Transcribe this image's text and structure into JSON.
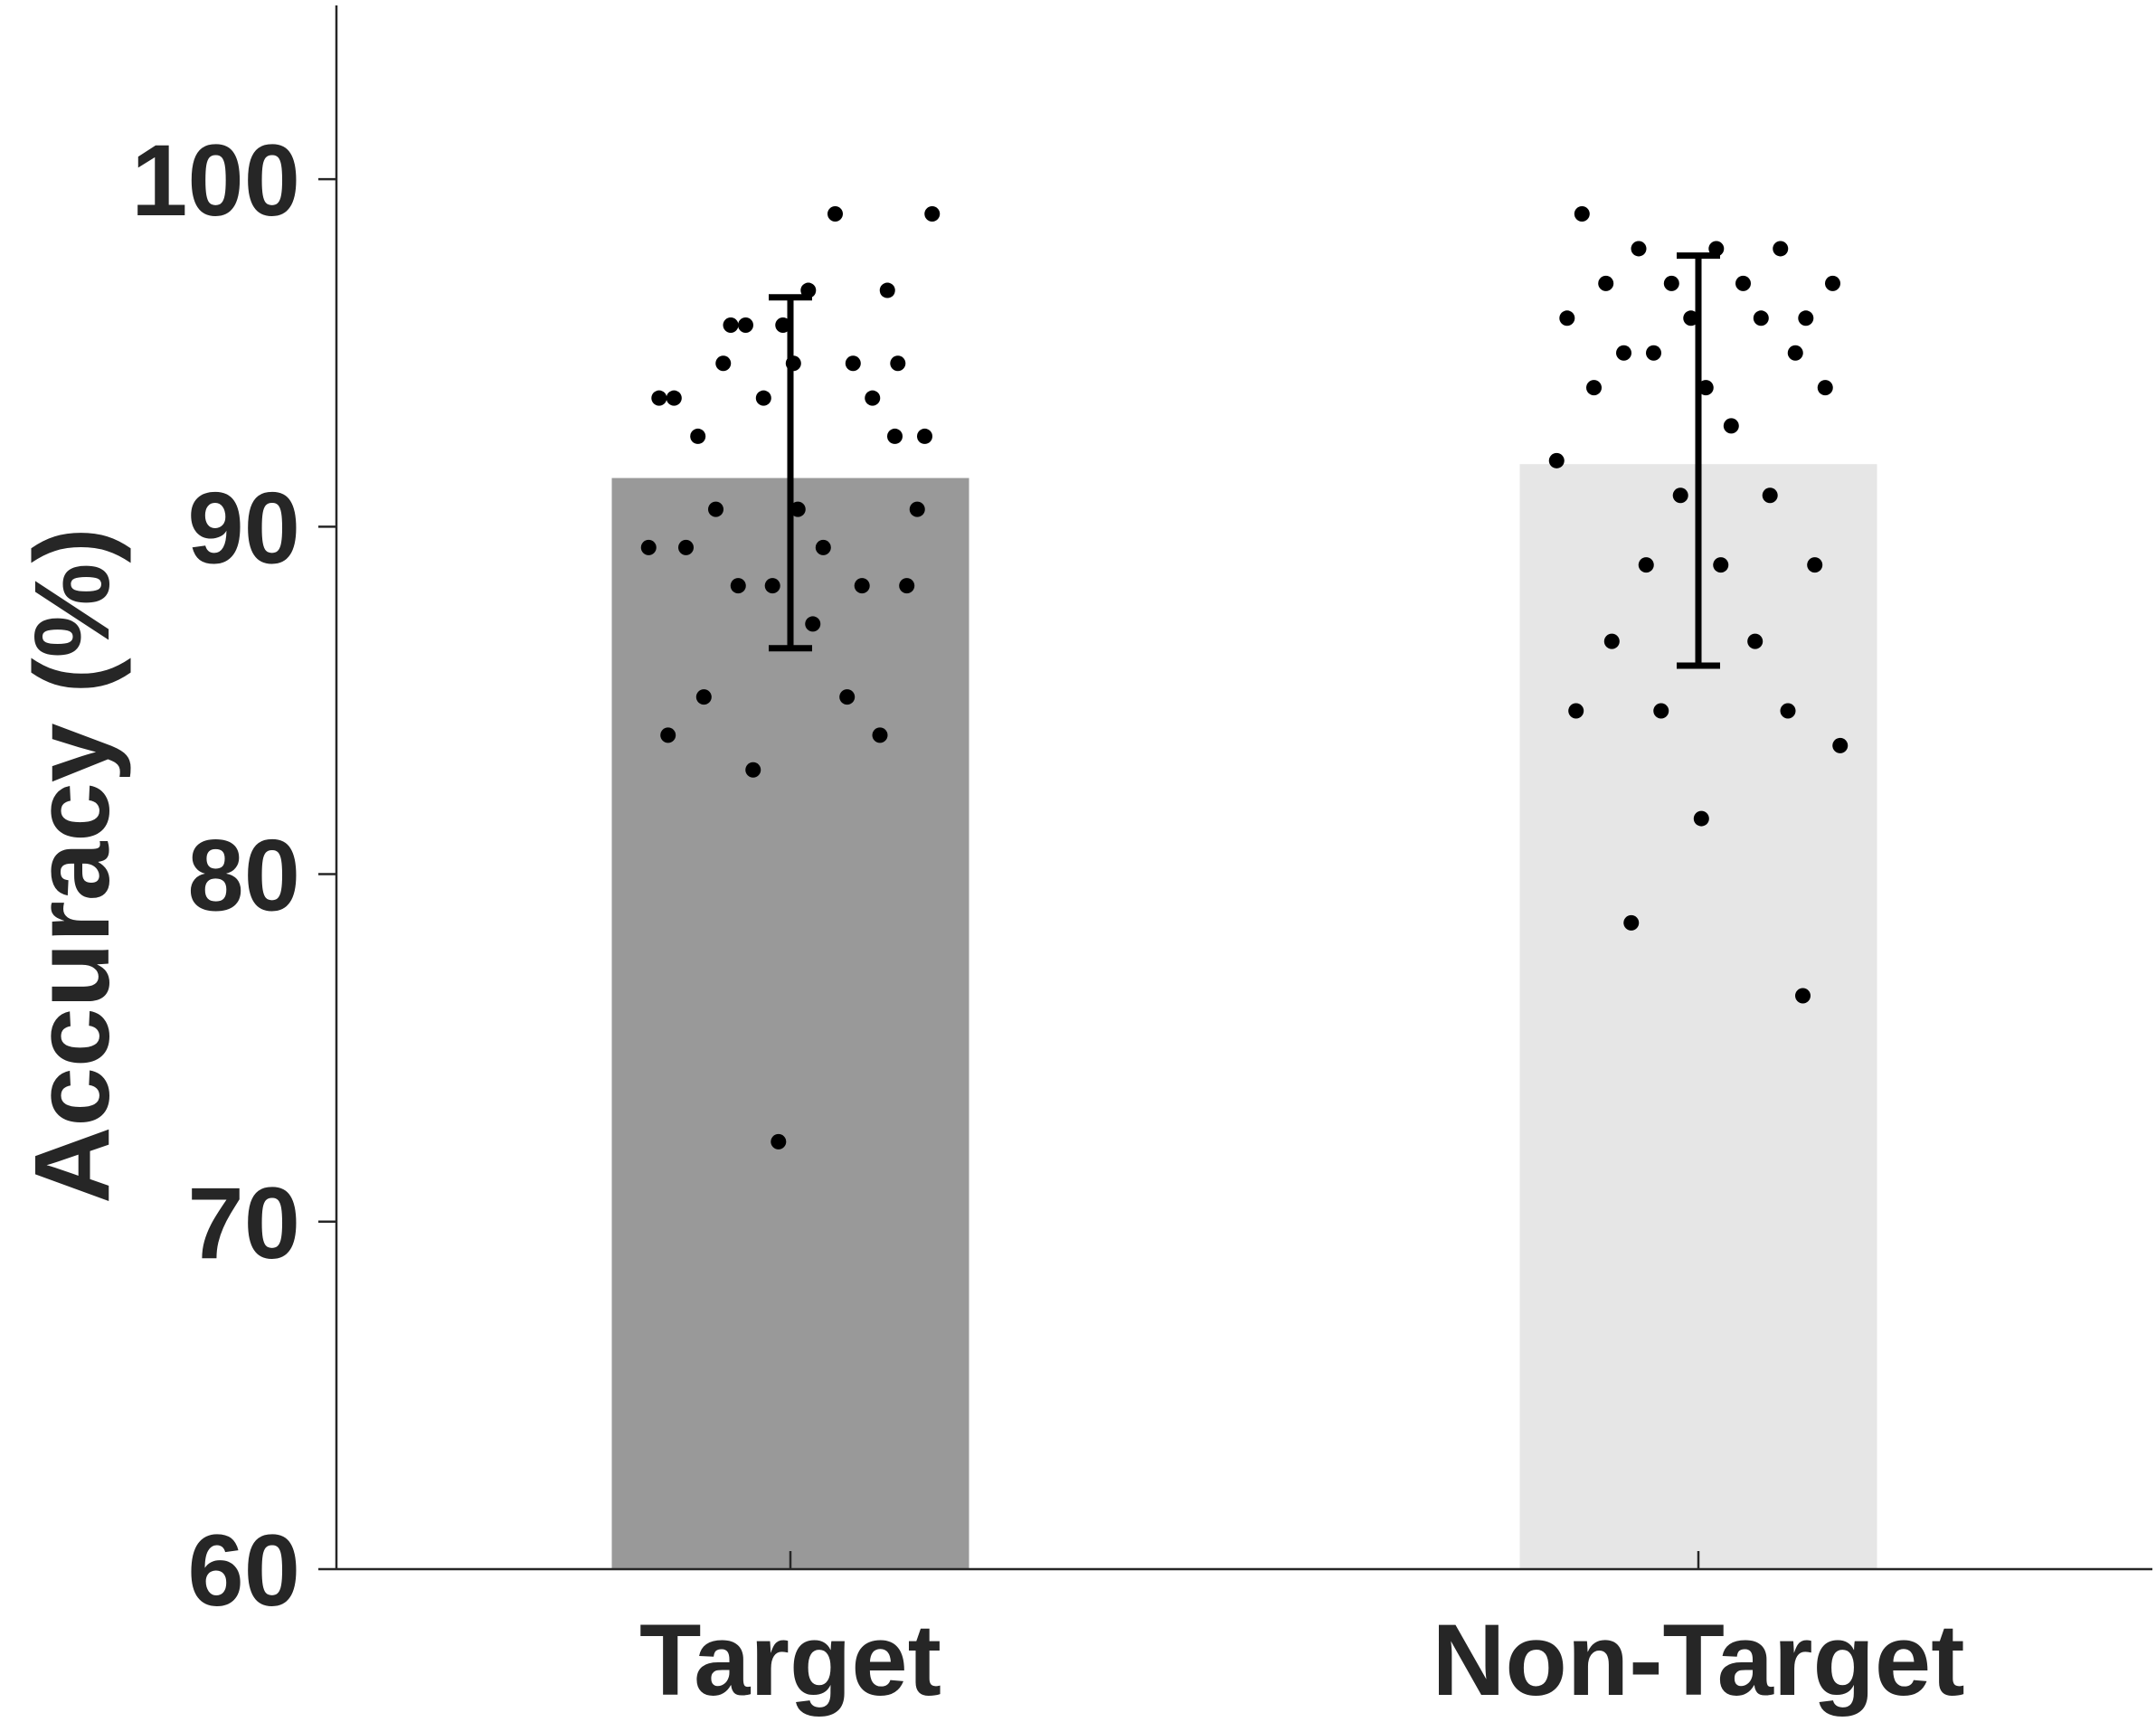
{
  "chart_data": {
    "type": "bar",
    "ylabel": "Accuracy (%)",
    "ylim": [
      60,
      105
    ],
    "yticks": [
      60,
      70,
      80,
      90,
      100
    ],
    "grid": false,
    "categories": [
      "Target",
      "Non-Target"
    ],
    "values": [
      91.4,
      91.8
    ],
    "bar_colors": [
      "#999999",
      "#e6e6e6"
    ],
    "error_bars": [
      {
        "mean": 91.4,
        "lower": 86.5,
        "upper": 96.6
      },
      {
        "mean": 91.8,
        "lower": 86.0,
        "upper": 97.8
      }
    ],
    "points": [
      [
        93.7,
        96.8,
        95.8,
        93.7,
        93.7,
        92.6,
        92.6,
        99.0,
        95.8,
        94.7,
        93.7,
        94.7,
        95.8,
        96.8,
        90.5,
        90.5,
        90.5,
        89.4,
        89.4,
        89.4,
        88.3,
        88.3,
        88.3,
        88.3,
        87.2,
        85.1,
        85.1,
        84.0,
        84.0,
        83.0,
        99.0,
        94.7,
        94.7,
        92.6,
        72.3
      ],
      [
        99.0,
        98.0,
        98.0,
        98.0,
        97.0,
        97.0,
        97.0,
        97.0,
        96.0,
        96.0,
        96.0,
        96.0,
        95.0,
        95.0,
        95.0,
        94.0,
        94.0,
        94.0,
        92.9,
        91.9,
        90.9,
        90.9,
        88.9,
        88.9,
        88.9,
        86.7,
        86.7,
        84.7,
        84.7,
        84.7,
        83.7,
        81.6,
        78.6,
        76.5
      ]
    ]
  }
}
